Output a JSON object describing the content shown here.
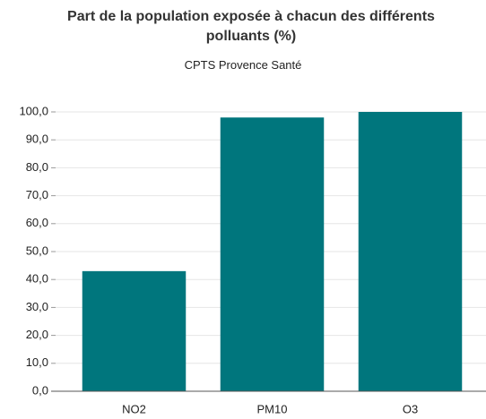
{
  "chart_data": {
    "type": "bar",
    "title": "Part de la population exposée à chacun des différents polluants (%)",
    "subtitle": "CPTS Provence Santé",
    "categories": [
      "NO2",
      "PM10",
      "O3"
    ],
    "values": [
      43,
      98,
      100
    ],
    "color": "#00767d",
    "ylim": [
      0,
      100
    ],
    "yticks": [
      {
        "value": 0,
        "label": "0,0"
      },
      {
        "value": 10,
        "label": "10,0"
      },
      {
        "value": 20,
        "label": "20,0"
      },
      {
        "value": 30,
        "label": "30,0"
      },
      {
        "value": 40,
        "label": "40,0"
      },
      {
        "value": 50,
        "label": "50,0"
      },
      {
        "value": 60,
        "label": "60,0"
      },
      {
        "value": 70,
        "label": "70,0"
      },
      {
        "value": 80,
        "label": "80,0"
      },
      {
        "value": 90,
        "label": "90,0"
      },
      {
        "value": 100,
        "label": "100,0"
      }
    ],
    "grid": true
  }
}
